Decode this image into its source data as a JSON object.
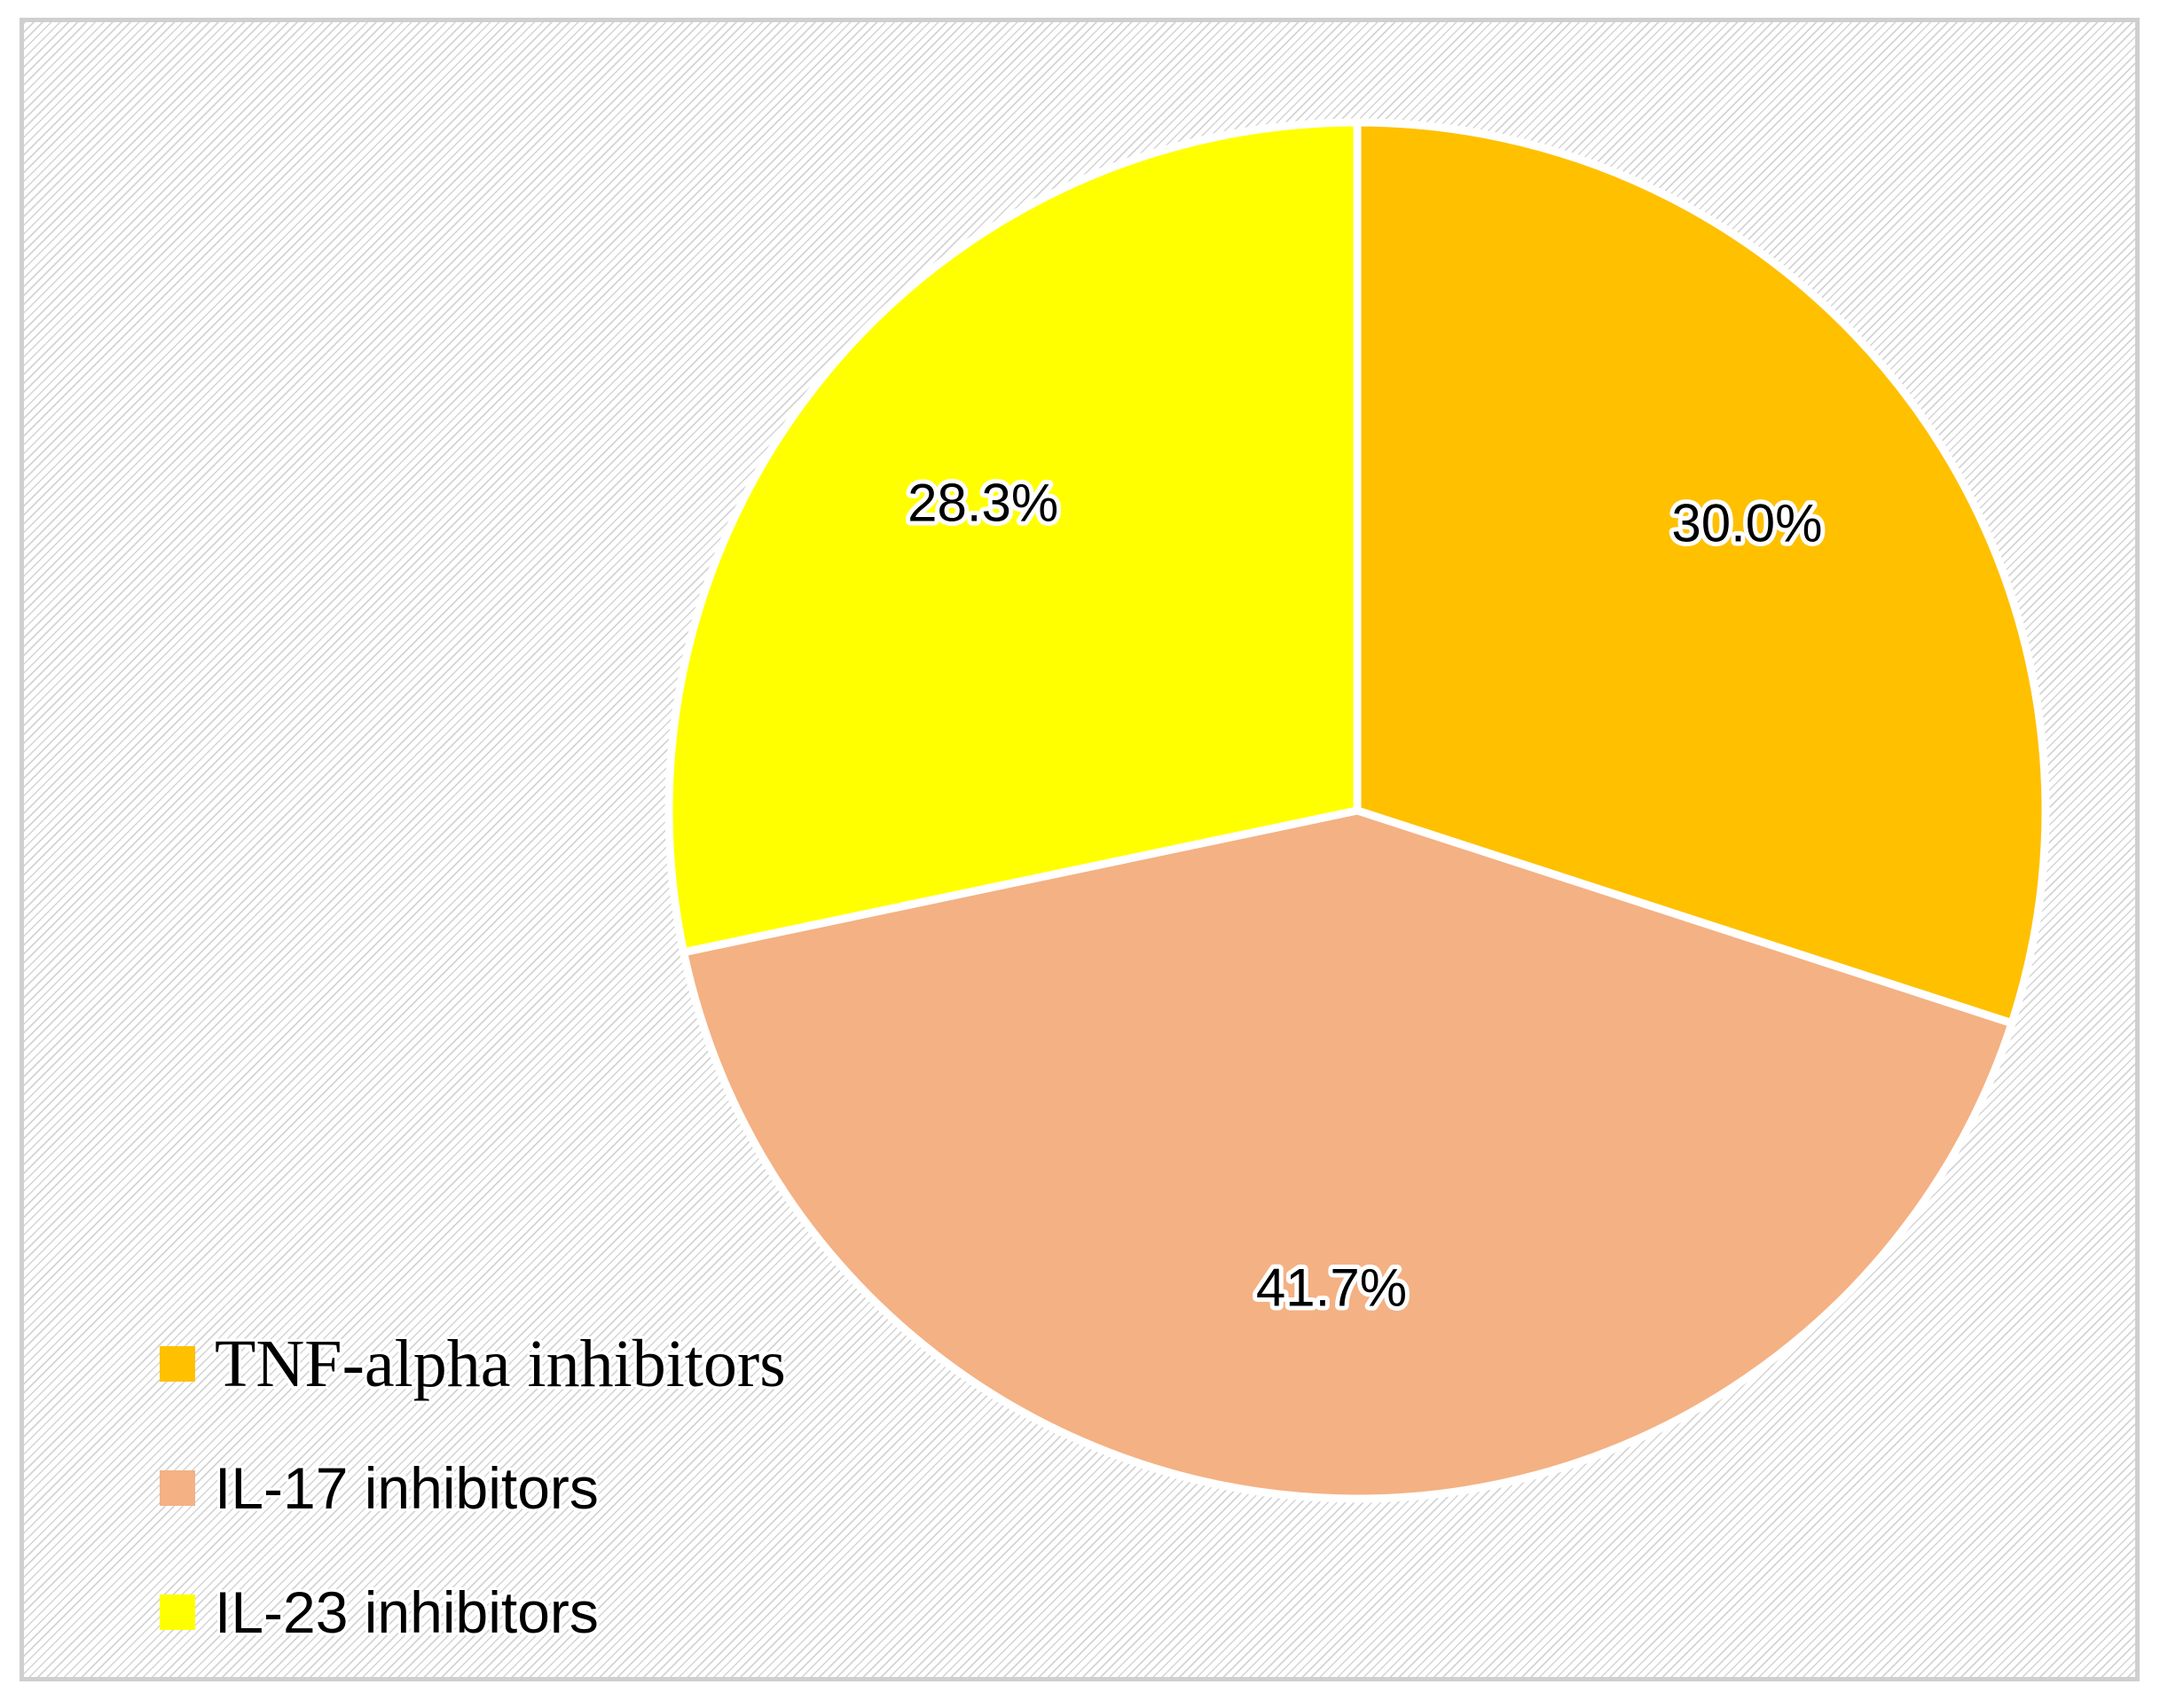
{
  "chart_data": {
    "type": "pie",
    "title": "",
    "categories": [
      "TNF-alpha inhibitors",
      "IL-17 inhibitors",
      "IL-23 inhibitors"
    ],
    "values": [
      30.0,
      41.7,
      28.3
    ],
    "value_labels": [
      "30.0%",
      "41.7%",
      "28.3%"
    ],
    "colors": [
      "#FFC000",
      "#F4B183",
      "#FFFF00"
    ],
    "legend_position": "bottom-left",
    "start_angle": "12 o'clock, clockwise"
  }
}
